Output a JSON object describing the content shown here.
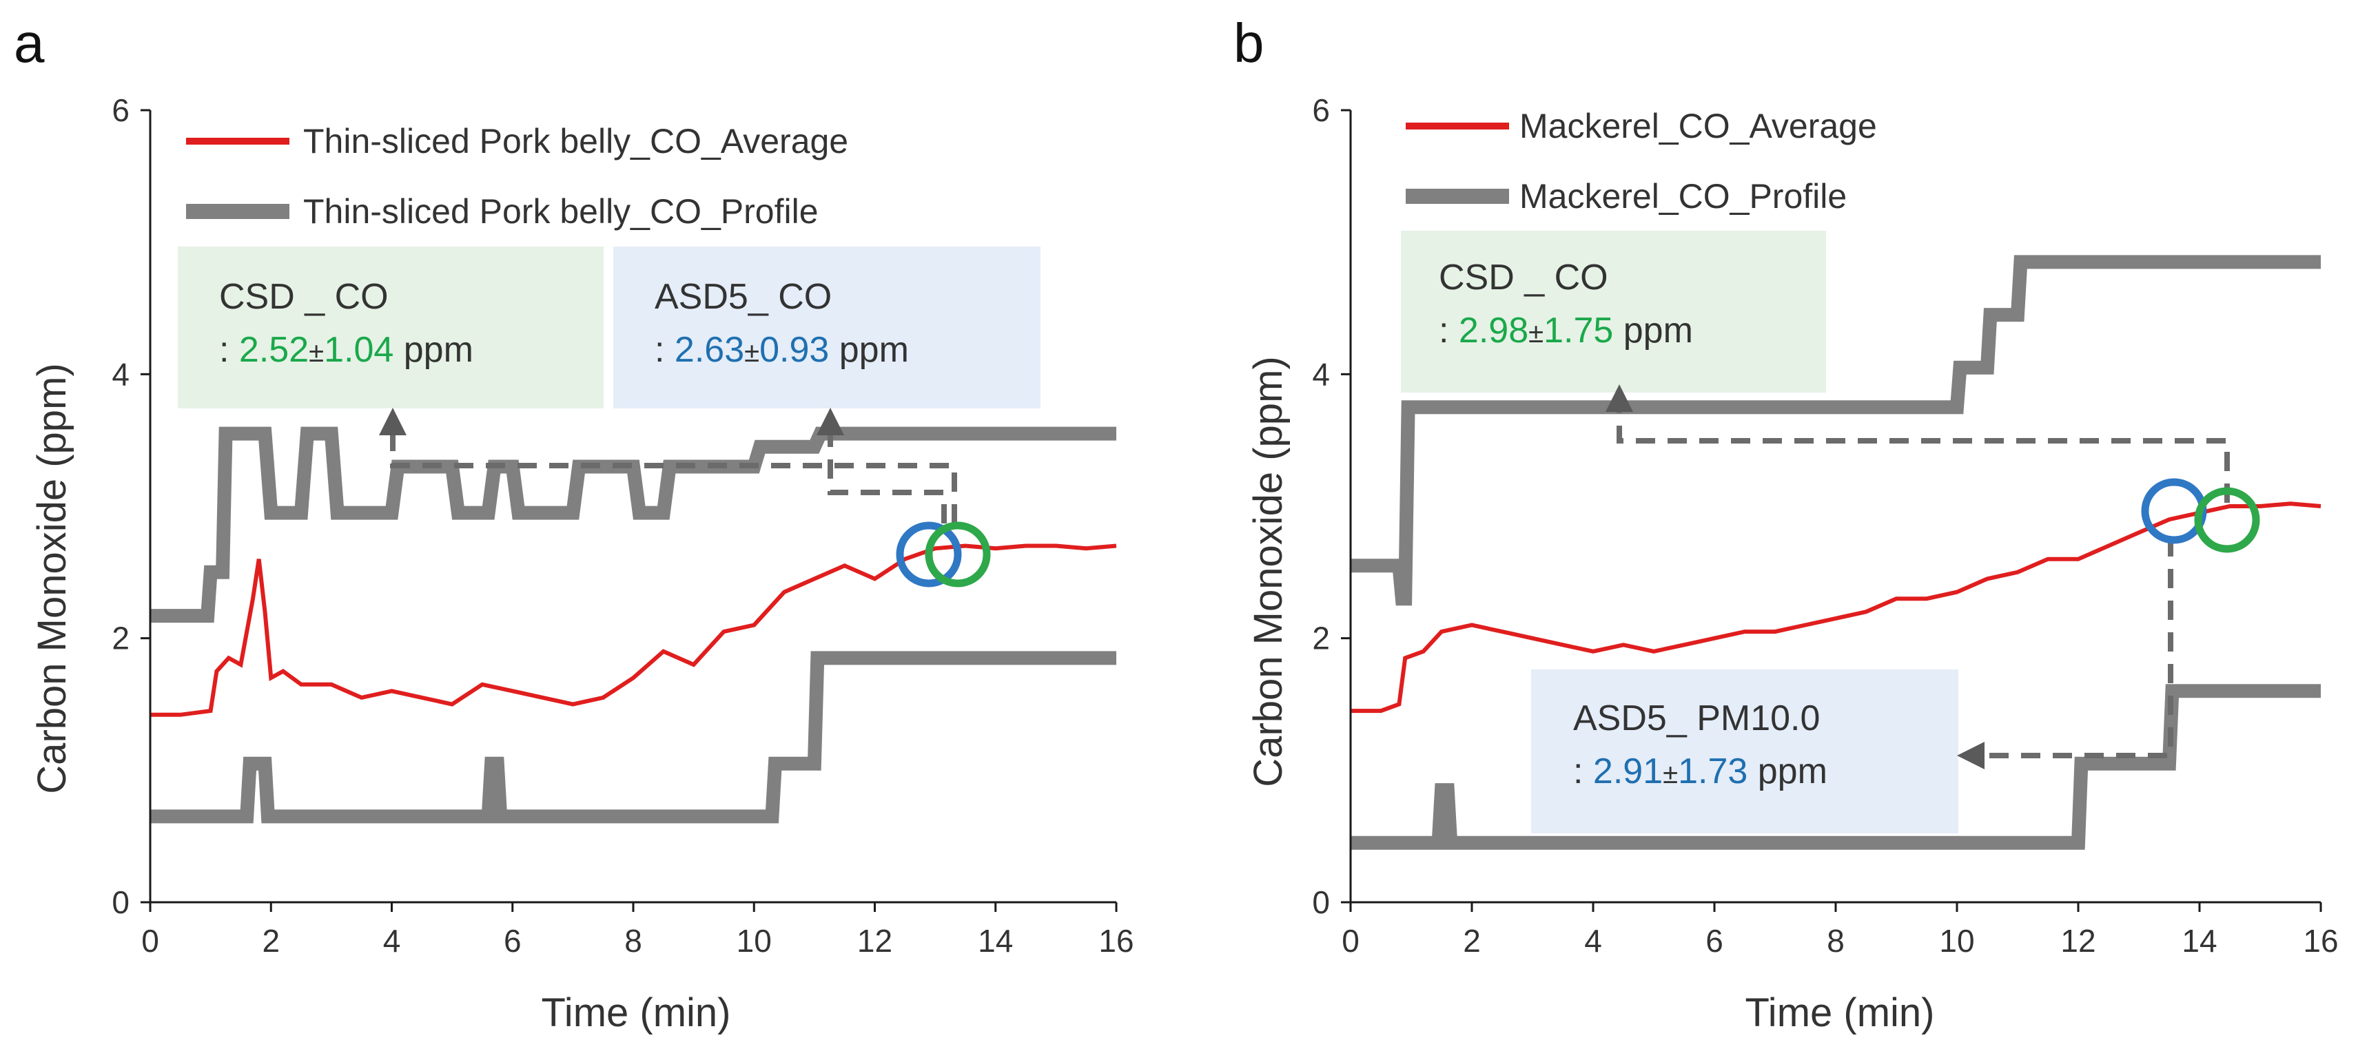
{
  "colors": {
    "average": "#e01e1e",
    "profile": "#808080",
    "arrow": "#6b6b6b",
    "axis": "#1a1a1a",
    "green_text": "#1aa84a",
    "blue_text": "#1f6fb0",
    "green_box": "#e6f2e6",
    "blue_box": "#e4edf8",
    "circle_blue": "#2f78c4",
    "circle_green": "#2ea84a"
  },
  "chart_data": [
    {
      "panel_label": "a",
      "type": "line",
      "xlabel": "Time (min)",
      "ylabel": "Carbon Monoxide (ppm)",
      "xlim": [
        0,
        16
      ],
      "ylim": [
        0,
        6
      ],
      "xticks": [
        "0",
        "2",
        "4",
        "6",
        "8",
        "10",
        "12",
        "14",
        "16"
      ],
      "yticks": [
        "0",
        "2",
        "4",
        "6"
      ],
      "legend": {
        "average": "Thin-sliced Pork belly_CO_Average",
        "profile": "Thin-sliced Pork belly_CO_Profile"
      },
      "series": [
        {
          "name": "Thin-sliced Pork belly_CO_Average",
          "role": "average",
          "x": [
            0,
            0.5,
            1.0,
            1.1,
            1.3,
            1.5,
            1.7,
            1.8,
            1.9,
            2.0,
            2.2,
            2.5,
            3.0,
            3.5,
            4.0,
            4.5,
            5.0,
            5.5,
            6.0,
            6.5,
            7.0,
            7.5,
            8.0,
            8.5,
            9.0,
            9.5,
            10.0,
            10.5,
            11.0,
            11.5,
            12.0,
            12.5,
            13.0,
            13.5,
            14.0,
            14.5,
            15.0,
            15.5,
            16.0
          ],
          "y": [
            1.42,
            1.42,
            1.45,
            1.75,
            1.85,
            1.8,
            2.3,
            2.6,
            2.2,
            1.7,
            1.75,
            1.65,
            1.65,
            1.55,
            1.6,
            1.55,
            1.5,
            1.65,
            1.6,
            1.55,
            1.5,
            1.55,
            1.7,
            1.9,
            1.8,
            2.05,
            2.1,
            2.35,
            2.45,
            2.55,
            2.45,
            2.6,
            2.68,
            2.7,
            2.68,
            2.7,
            2.7,
            2.68,
            2.7
          ]
        },
        {
          "name": "Thin-sliced Pork belly_CO_Profile (high)",
          "role": "profile",
          "x": [
            0,
            0.5,
            0.95,
            1.0,
            1.2,
            1.25,
            1.9,
            2.0,
            2.5,
            2.6,
            3.0,
            3.1,
            4.0,
            4.1,
            5.0,
            5.1,
            5.6,
            5.7,
            6.0,
            6.1,
            7.0,
            7.1,
            8.0,
            8.1,
            8.5,
            8.6,
            10.0,
            10.1,
            11.0,
            11.1,
            12.0,
            12.1,
            16.0
          ],
          "y": [
            2.17,
            2.17,
            2.17,
            2.5,
            2.5,
            3.55,
            3.55,
            2.95,
            2.95,
            3.55,
            3.55,
            2.95,
            2.95,
            3.3,
            3.3,
            2.95,
            2.95,
            3.3,
            3.3,
            2.95,
            2.95,
            3.3,
            3.3,
            2.95,
            2.95,
            3.3,
            3.3,
            3.45,
            3.45,
            3.55,
            3.55,
            3.55,
            3.55
          ]
        },
        {
          "name": "Thin-sliced Pork belly_CO_Profile (low)",
          "role": "profile",
          "x": [
            0,
            1.6,
            1.65,
            1.9,
            1.95,
            5.6,
            5.65,
            5.75,
            5.8,
            10.3,
            10.35,
            11.0,
            11.05,
            11.5,
            11.55,
            16.0
          ],
          "y": [
            0.65,
            0.65,
            1.05,
            1.05,
            0.65,
            0.65,
            1.05,
            1.05,
            0.65,
            0.65,
            1.05,
            1.05,
            1.85,
            1.85,
            1.85,
            1.85
          ]
        }
      ],
      "annotations": [
        {
          "title": "CSD _ CO",
          "prefix": ": ",
          "mean": "2.52",
          "pm": "±",
          "sd": "1.04",
          "unit": " ppm",
          "color_role": "green"
        },
        {
          "title": "ASD5_ CO",
          "prefix": ": ",
          "mean": "2.63",
          "pm": "±",
          "sd": "0.93",
          "unit": " ppm",
          "color_role": "blue"
        }
      ]
    },
    {
      "panel_label": "b",
      "type": "line",
      "xlabel": "Time (min)",
      "ylabel": "Carbon Monoxide (ppm)",
      "xlim": [
        0,
        16
      ],
      "ylim": [
        0,
        6
      ],
      "xticks": [
        "0",
        "2",
        "4",
        "6",
        "8",
        "10",
        "12",
        "14",
        "16"
      ],
      "yticks": [
        "0",
        "2",
        "4",
        "6"
      ],
      "legend": {
        "average": "Mackerel_CO_Average",
        "profile": "Mackerel_CO_Profile"
      },
      "series": [
        {
          "name": "Mackerel_CO_Average",
          "role": "average",
          "x": [
            0,
            0.5,
            0.8,
            0.9,
            1.2,
            1.5,
            2.0,
            2.5,
            3.0,
            3.5,
            4.0,
            4.5,
            5.0,
            5.5,
            6.0,
            6.5,
            7.0,
            7.5,
            8.0,
            8.5,
            9.0,
            9.5,
            10.0,
            10.5,
            11.0,
            11.5,
            12.0,
            12.5,
            13.0,
            13.5,
            14.0,
            14.5,
            15.0,
            15.5,
            16.0
          ],
          "y": [
            1.45,
            1.45,
            1.5,
            1.85,
            1.9,
            2.05,
            2.1,
            2.05,
            2.0,
            1.95,
            1.9,
            1.95,
            1.9,
            1.95,
            2.0,
            2.05,
            2.05,
            2.1,
            2.15,
            2.2,
            2.3,
            2.3,
            2.35,
            2.45,
            2.5,
            2.6,
            2.6,
            2.7,
            2.8,
            2.9,
            2.95,
            3.0,
            3.0,
            3.02,
            3.0
          ]
        },
        {
          "name": "Mackerel_CO_Profile (high)",
          "role": "profile",
          "x": [
            0,
            0.8,
            0.85,
            0.9,
            0.95,
            10.0,
            10.05,
            10.5,
            10.55,
            11.0,
            11.05,
            12.0,
            12.05,
            16.0
          ],
          "y": [
            2.55,
            2.55,
            2.3,
            2.3,
            3.75,
            3.75,
            4.05,
            4.05,
            4.45,
            4.45,
            4.85,
            4.85,
            4.85,
            4.85
          ]
        },
        {
          "name": "Mackerel_CO_Profile (low)",
          "role": "profile",
          "x": [
            0,
            1.45,
            1.5,
            1.6,
            1.65,
            10.0,
            10.05,
            12.0,
            12.05,
            13.5,
            13.55,
            15.0,
            15.05,
            16.0
          ],
          "y": [
            0.45,
            0.45,
            0.85,
            0.85,
            0.45,
            0.45,
            0.45,
            0.45,
            1.05,
            1.05,
            1.6,
            1.6,
            1.6,
            1.6
          ]
        }
      ],
      "annotations": [
        {
          "title": "CSD _ CO",
          "prefix": ": ",
          "mean": "2.98",
          "pm": "±",
          "sd": "1.75",
          "unit": " ppm",
          "color_role": "green"
        },
        {
          "title": "ASD5_ PM10.0",
          "prefix": ": ",
          "mean": "2.91",
          "pm": "±",
          "sd": "1.73",
          "unit": " ppm",
          "color_role": "blue"
        }
      ]
    }
  ]
}
